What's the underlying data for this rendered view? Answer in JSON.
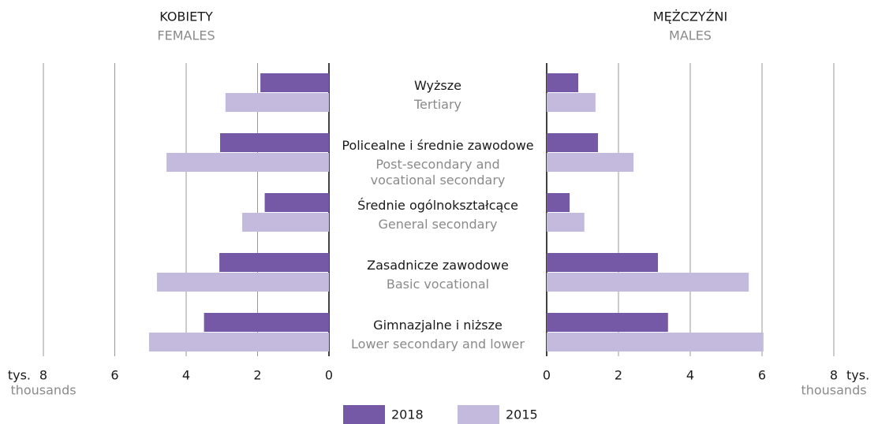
{
  "chart_data": {
    "type": "bar",
    "orientation": "horizontal",
    "categories": [
      "Wyższe",
      "Policealne i średnie zawodowe",
      "Średnie ogólnokształcące",
      "Zasadnicze zawodowe",
      "Gimnazjalne i niższe"
    ],
    "categories_en": [
      "Tertiary",
      "Post-secondary and\nvocational secondary",
      "General secondary",
      "Basic vocational",
      "Lower secondary and lower"
    ],
    "panels": [
      {
        "title": "KOBIETY",
        "subtitle": "FEMALES"
      },
      {
        "title": "MĘŻCZYŹNI",
        "subtitle": "MALES"
      }
    ],
    "series": [
      {
        "name": "2018",
        "color": "#7559a6",
        "values": [
          [
            1.92,
            3.05,
            1.8,
            3.07,
            3.5
          ],
          [
            0.88,
            1.43,
            0.64,
            3.1,
            3.38
          ]
        ]
      },
      {
        "name": "2015",
        "color": "#c4bade",
        "values": [
          [
            2.9,
            4.55,
            2.43,
            4.82,
            5.04
          ],
          [
            1.36,
            2.42,
            1.05,
            5.63,
            6.04
          ]
        ]
      }
    ],
    "xlim": [
      0,
      8
    ],
    "xticks": [
      0,
      2,
      4,
      6,
      8
    ],
    "unit_label": "tys.",
    "unit_label_en": "thousands",
    "grid": true
  }
}
